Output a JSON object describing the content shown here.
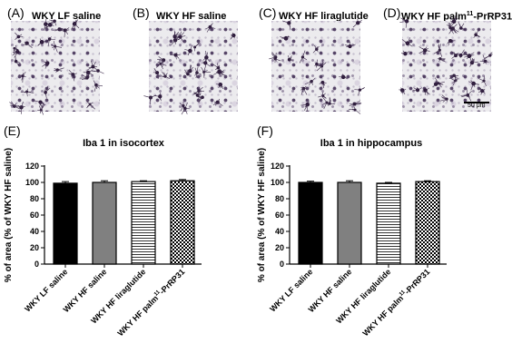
{
  "panels": [
    {
      "letter": "(A)",
      "title": "WKY LF saline"
    },
    {
      "letter": "(B)",
      "title": "WKY HF saline"
    },
    {
      "letter": "(C)",
      "title": "WKY HF liraglutide"
    },
    {
      "letter": "(D)",
      "title_main": "WKY HF palm",
      "title_sup": "11",
      "title_rest": "-PrRP31"
    }
  ],
  "scale_bar_label": "50 μm",
  "chart_data": [
    {
      "letter": "(E)",
      "type": "bar",
      "title": "Iba 1 in isocortex",
      "ylabel": "% of area (% of WKY HF saline)",
      "ylim": [
        0,
        120
      ],
      "yticks": [
        0,
        20,
        40,
        60,
        80,
        100,
        120
      ],
      "categories": [
        "WKY LF saline",
        "WKY HF saline",
        "WKY HF liraglutide",
        "WKY HF palm11-PrRP31"
      ],
      "category_labels": [
        {
          "main": "WKY LF saline",
          "sup": "",
          "rest": ""
        },
        {
          "main": "WKY HF saline",
          "sup": "",
          "rest": ""
        },
        {
          "main": "WKY HF liraglutide",
          "sup": "",
          "rest": ""
        },
        {
          "main": "WKY HF palm",
          "sup": "11",
          "rest": "-PrRP31"
        }
      ],
      "values": [
        99,
        100,
        101,
        102
      ],
      "errors": [
        2,
        2,
        1,
        1.5
      ],
      "fills": [
        "solid-black",
        "solid-gray",
        "horizontal-lines",
        "checkerboard"
      ]
    },
    {
      "letter": "(F)",
      "type": "bar",
      "title": "Iba 1 in hippocampus",
      "ylabel": "% of area (% of WKY HF saline)",
      "ylim": [
        0,
        120
      ],
      "yticks": [
        0,
        20,
        40,
        60,
        80,
        100,
        120
      ],
      "categories": [
        "WKY LF saline",
        "WKY HF saline",
        "WKY HF liraglutide",
        "WKY HF palm11-PrRP31"
      ],
      "category_labels": [
        {
          "main": "WKY LF saline",
          "sup": "",
          "rest": ""
        },
        {
          "main": "WKY HF saline",
          "sup": "",
          "rest": ""
        },
        {
          "main": "WKY HF liraglutide",
          "sup": "",
          "rest": ""
        },
        {
          "main": "WKY HF palm",
          "sup": "11",
          "rest": "-PrRP31"
        }
      ],
      "values": [
        100,
        100,
        99,
        101
      ],
      "errors": [
        1.5,
        2,
        1,
        1
      ],
      "fills": [
        "solid-black",
        "solid-gray",
        "horizontal-lines",
        "checkerboard"
      ]
    }
  ]
}
